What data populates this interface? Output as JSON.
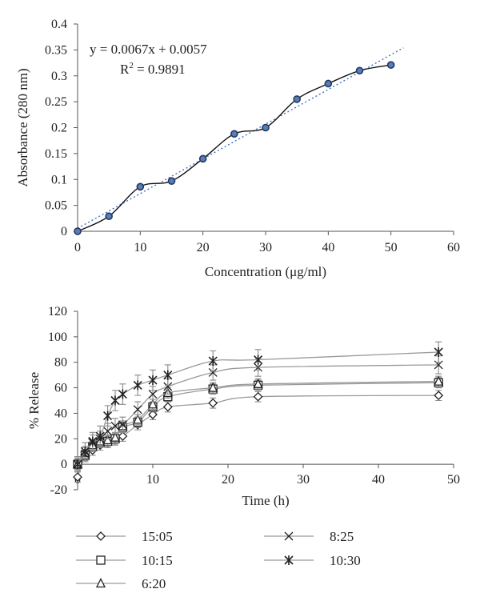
{
  "chart_data": [
    {
      "type": "scatter",
      "title": "",
      "xlabel": "Concentration (μg/ml)",
      "ylabel": "Absorbance (280 nm)",
      "xlim": [
        0,
        60
      ],
      "ylim": [
        0,
        0.4
      ],
      "xticks": [
        0,
        10,
        20,
        30,
        40,
        50,
        60
      ],
      "yticks": [
        0,
        0.05,
        0.1,
        0.15,
        0.2,
        0.25,
        0.3,
        0.35,
        0.4
      ],
      "x": [
        0,
        5,
        10,
        15,
        20,
        25,
        30,
        35,
        40,
        45,
        50
      ],
      "y": [
        0,
        0.029,
        0.086,
        0.097,
        0.14,
        0.188,
        0.2,
        0.255,
        0.285,
        0.31,
        0.321
      ],
      "trendline": {
        "slope": 0.0067,
        "intercept": 0.0057,
        "x_range": [
          0,
          52
        ]
      },
      "equation": {
        "text": "y = 0.0067x + 0.0057",
        "r2_prefix": "R",
        "r2_sup": "2",
        "r2_suffix": " = 0.9891"
      },
      "grid": false,
      "colors": {
        "points": "#1f3864",
        "point_fill": "#5b7db5",
        "line": "#111111",
        "trend": "#4472c4"
      }
    },
    {
      "type": "line",
      "title": "",
      "xlabel": "Time (h)",
      "ylabel": "% Release",
      "xlim": [
        0,
        50
      ],
      "ylim": [
        -20,
        120
      ],
      "xticks": [
        0,
        10,
        20,
        30,
        40,
        50
      ],
      "yticks": [
        -20,
        0,
        20,
        40,
        60,
        80,
        100,
        120
      ],
      "x": [
        0,
        1,
        2,
        3,
        4,
        5,
        6,
        8,
        10,
        12,
        18,
        24,
        48
      ],
      "series": [
        {
          "name": "15:05",
          "marker": "diamond",
          "values": [
            -10,
            7,
            11,
            15,
            17,
            19,
            22,
            31,
            39,
            45,
            48,
            53,
            54
          ],
          "errors": [
            4,
            4,
            4,
            4,
            4,
            4,
            4,
            4,
            4,
            4,
            4,
            4,
            4
          ]
        },
        {
          "name": "10:15",
          "marker": "square",
          "values": [
            0,
            7,
            14,
            17,
            18,
            20,
            29,
            33,
            45,
            53,
            59,
            62,
            64
          ],
          "errors": [
            4,
            4,
            4,
            4,
            4,
            4,
            4,
            4,
            4,
            4,
            4,
            4,
            4
          ]
        },
        {
          "name": "6:20",
          "marker": "triangle",
          "values": [
            0,
            9,
            15,
            18,
            19,
            21,
            30,
            35,
            47,
            56,
            60,
            63,
            65
          ],
          "errors": [
            4,
            4,
            4,
            4,
            4,
            4,
            4,
            4,
            4,
            4,
            4,
            4,
            4
          ]
        },
        {
          "name": "8:25",
          "marker": "x",
          "values": [
            0,
            8,
            17,
            20,
            26,
            30,
            31,
            43,
            55,
            61,
            72,
            76,
            78
          ],
          "errors": [
            5,
            6,
            6,
            6,
            6,
            6,
            6,
            6,
            6,
            6,
            6,
            7,
            7
          ]
        },
        {
          "name": "10:30",
          "marker": "star",
          "values": [
            0,
            10,
            18,
            22,
            38,
            50,
            55,
            62,
            66,
            70,
            81,
            82,
            88
          ],
          "errors": [
            6,
            7,
            7,
            8,
            8,
            8,
            8,
            8,
            8,
            8,
            8,
            8,
            8
          ]
        }
      ],
      "legend_position": "bottom",
      "grid": false,
      "colors": {
        "line": "#9a9a9a",
        "marker": "#222222",
        "error": "#8a8a8a"
      }
    }
  ]
}
